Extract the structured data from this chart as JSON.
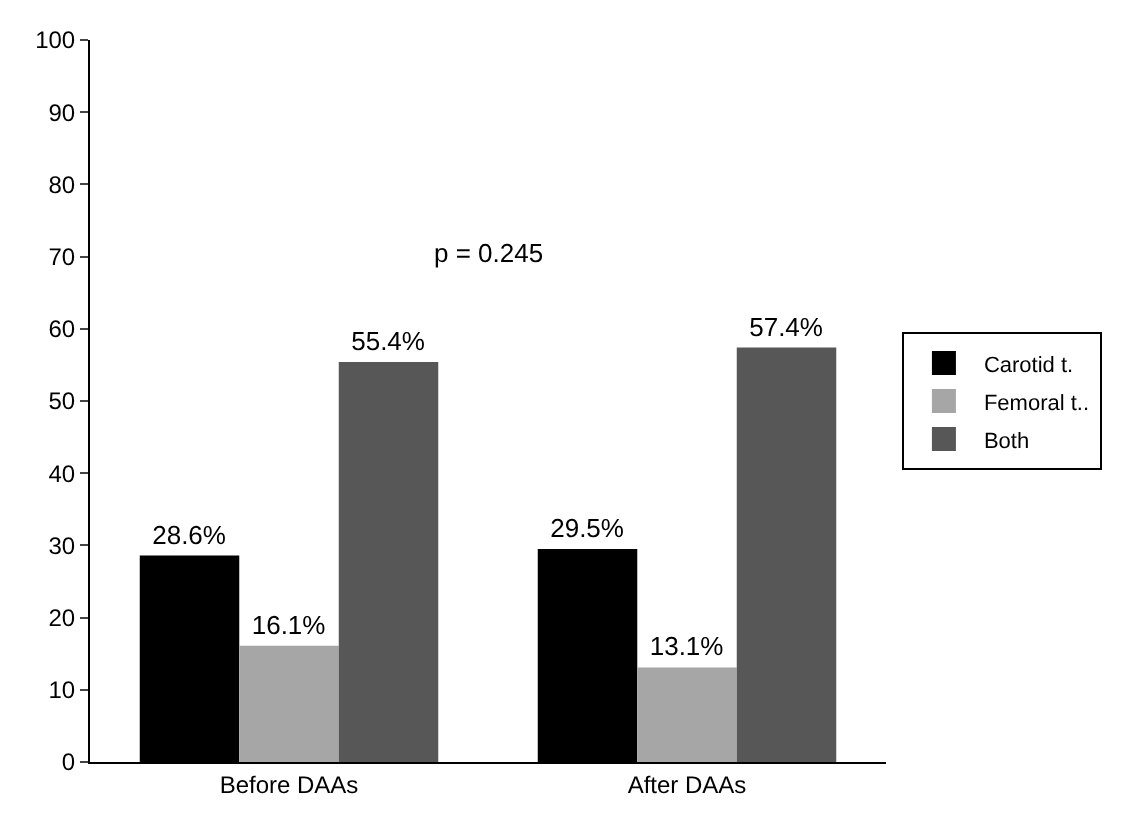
{
  "chart_data": {
    "type": "bar",
    "categories": [
      "Before DAAs",
      "After DAAs"
    ],
    "series": [
      {
        "name": "Carotid t.",
        "color": "#000000",
        "values": [
          28.6,
          29.5
        ],
        "value_labels": [
          "28.6%",
          "29.5%"
        ]
      },
      {
        "name": "Femoral t..",
        "color": "#a6a6a6",
        "values": [
          16.1,
          13.1
        ],
        "value_labels": [
          "16.1%",
          "13.1%"
        ]
      },
      {
        "name": "Both",
        "color": "#575757",
        "values": [
          55.4,
          57.4
        ],
        "value_labels": [
          "55.4%",
          "57.4%"
        ]
      }
    ],
    "ylim": [
      0,
      100
    ],
    "yticks": [
      0,
      10,
      20,
      30,
      40,
      50,
      60,
      70,
      80,
      90,
      100
    ],
    "grid": false,
    "legend": "right",
    "annotations": [
      "p = 0.245"
    ]
  }
}
